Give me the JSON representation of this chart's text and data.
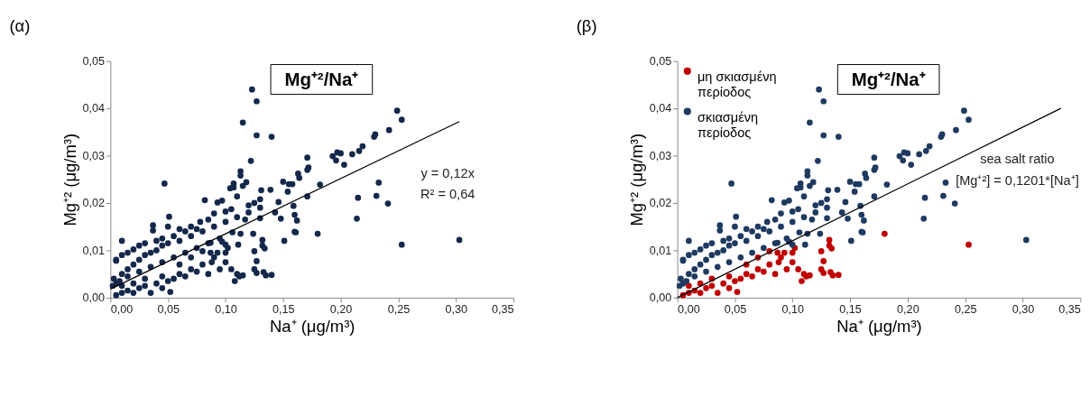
{
  "chart_data": [
    {
      "type": "scatter",
      "title": "(α)",
      "subtitle": "Mg⁺²/Na⁺",
      "xlabel": "Na⁺ (μg/m³)",
      "ylabel": "Mg⁺² (μg/m³)",
      "marker": "circle",
      "legend": false,
      "grid": false,
      "xlim": [
        0,
        0.35
      ],
      "ylim": [
        0,
        0.05
      ],
      "xticks": [
        {
          "value": 0,
          "label": "0,00"
        },
        {
          "value": 0.05,
          "label": "0,05"
        },
        {
          "value": 0.1,
          "label": "0,10"
        },
        {
          "value": 0.15,
          "label": "0,15"
        },
        {
          "value": 0.2,
          "label": "0,20"
        },
        {
          "value": 0.25,
          "label": "0,25"
        },
        {
          "value": 0.3,
          "label": "0,30"
        },
        {
          "value": 0.35,
          "label": "0,35"
        }
      ],
      "yticks": [
        {
          "value": 0,
          "label": "0,00"
        },
        {
          "value": 0.01,
          "label": "0,01"
        },
        {
          "value": 0.02,
          "label": "0,02"
        },
        {
          "value": 0.03,
          "label": "0,03"
        },
        {
          "value": 0.04,
          "label": "0,04"
        },
        {
          "value": 0.05,
          "label": "0,05"
        }
      ],
      "annotations": [
        "y = 0,12x",
        "R² = 0,64"
      ],
      "series": [
        {
          "type": "scatter",
          "color": "#14284b",
          "x": [
            0.123,
            0.127,
            0.115,
            0.127,
            0.14,
            0.122,
            0.249,
            0.253,
            0.242,
            0.23,
            0.229,
            0.219,
            0.216,
            0.21,
            0.2,
            0.197,
            0.193,
            0.196,
            0.203,
            0.171,
            0.172,
            0.171,
            0.163,
            0.164,
            0.15,
            0.155,
            0.158,
            0.154,
            0.182,
            0.171,
            0.233,
            0.231,
            0.241,
            0.215,
            0.214,
            0.303,
            0.151,
            0.16,
            0.161,
            0.159,
            0.16,
            0.162,
            0.146,
            0.143,
            0.148,
            0.139,
            0.131,
            0.13,
            0.125,
            0.12,
            0.113,
            0.113,
            0.118,
            0.115,
            0.107,
            0.107,
            0.104,
            0.11,
            0.105,
            0.1,
            0.093,
            0.097,
            0.082,
            0.09,
            0.047,
            0.051,
            0.037,
            0.037,
            0.01,
            0.05,
            0.06,
            0.07,
            0.078,
            0.085,
            0.005,
            0.005,
            0.01,
            0.015,
            0.02,
            0.025,
            0.03,
            0.04,
            0.045,
            0.055,
            0.065,
            0.075,
            0.003,
            0.005,
            0.01,
            0.015,
            0.02,
            0.025,
            0.03,
            0.035,
            0.04,
            0.045,
            0.05,
            0.06,
            0.07,
            0.08,
            0.09,
            0.1,
            0.11,
            0.12,
            0.13,
            0.002,
            0.008,
            0.015,
            0.025,
            0.035,
            0.045,
            0.055,
            0.065,
            0.075,
            0.085,
            0.095,
            0.106,
            0.117,
            0.124,
            0.13,
            0.113,
            0.111,
            0.1,
            0.097,
            0.087,
            0.005,
            0.01,
            0.015,
            0.02,
            0.025,
            0.03,
            0.035,
            0.04,
            0.045,
            0.05,
            0.052,
            0.055,
            0.06,
            0.065,
            0.07,
            0.075,
            0.08,
            0.085,
            0.09,
            0.095,
            0.1,
            0.1,
            0.105,
            0.108,
            0.11,
            0.115,
            0.112,
            0.088,
            0.093,
            0.102,
            0.125,
            0.127,
            0.125,
            0.127,
            0.132,
            0.132,
            0.134,
            0.133,
            0.135,
            0.14,
            0.087,
            0.08,
            0.07,
            0.06,
            0.045,
            0.03,
            0.02,
            0.01,
            0.253,
            0.18
          ],
          "values": [
            0.044,
            0.0415,
            0.037,
            0.0343,
            0.034,
            0.0289,
            0.0395,
            0.0376,
            0.0354,
            0.0345,
            0.034,
            0.032,
            0.031,
            0.0303,
            0.0305,
            0.0307,
            0.0299,
            0.029,
            0.0281,
            0.0296,
            0.0275,
            0.027,
            0.0262,
            0.0253,
            0.0245,
            0.024,
            0.024,
            0.0224,
            0.0239,
            0.0214,
            0.0243,
            0.0215,
            0.0199,
            0.0211,
            0.0167,
            0.0122,
            0.012,
            0.0139,
            0.0138,
            0.0194,
            0.0175,
            0.0163,
            0.0202,
            0.018,
            0.0167,
            0.0228,
            0.0227,
            0.0208,
            0.02,
            0.0195,
            0.0267,
            0.0258,
            0.0244,
            0.0236,
            0.0241,
            0.0233,
            0.0231,
            0.0214,
            0.0187,
            0.0182,
            0.0201,
            0.0205,
            0.0206,
            0.0178,
            0.0241,
            0.0171,
            0.0153,
            0.0142,
            0.012,
            0.015,
            0.0145,
            0.015,
            0.016,
            0.0165,
            0.008,
            0.0078,
            0.009,
            0.0095,
            0.0102,
            0.011,
            0.0115,
            0.012,
            0.0125,
            0.013,
            0.014,
            0.0145,
            0.004,
            0.003,
            0.005,
            0.006,
            0.007,
            0.008,
            0.009,
            0.0095,
            0.01,
            0.011,
            0.0115,
            0.012,
            0.013,
            0.014,
            0.015,
            0.016,
            0.017,
            0.018,
            0.019,
            0.0025,
            0.0035,
            0.0045,
            0.0055,
            0.0065,
            0.0075,
            0.0085,
            0.0095,
            0.0105,
            0.0115,
            0.0125,
            0.0138,
            0.0165,
            0.0135,
            0.0168,
            0.0135,
            0.0112,
            0.0112,
            0.0118,
            0.0116,
            0.0005,
            0.001,
            0.0015,
            0.001,
            0.002,
            0.0025,
            0.001,
            0.003,
            0.002,
            0.0035,
            0.0012,
            0.004,
            0.005,
            0.0045,
            0.006,
            0.0055,
            0.007,
            0.005,
            0.0085,
            0.006,
            0.0095,
            0.0075,
            0.006,
            0.0035,
            0.005,
            0.0047,
            0.0045,
            0.0075,
            0.0095,
            0.0105,
            0.0098,
            0.0077,
            0.006,
            0.0052,
            0.0122,
            0.011,
            0.0104,
            0.0054,
            0.0047,
            0.0048,
            0.0095,
            0.0098,
            0.0085,
            0.007,
            0.0045,
            0.004,
            0.003,
            0.0025,
            0.0112,
            0.0135
          ]
        },
        {
          "type": "line",
          "color": "#000000",
          "marker": "none",
          "line_style": "solid",
          "x": [
            0,
            0.303
          ],
          "values": [
            0.0018,
            0.0372
          ]
        }
      ]
    },
    {
      "type": "scatter",
      "title": "(β)",
      "subtitle": "Mg⁺²/Na⁺",
      "xlabel": "Na⁺ (μg/m³)",
      "ylabel": "Mg⁺² (μg/m³)",
      "marker": "circle",
      "legend": "top left",
      "grid": false,
      "xlim": [
        0,
        0.35
      ],
      "ylim": [
        0,
        0.05
      ],
      "xticks": [
        {
          "value": 0,
          "label": "0,00"
        },
        {
          "value": 0.05,
          "label": "0,05"
        },
        {
          "value": 0.1,
          "label": "0,10"
        },
        {
          "value": 0.15,
          "label": "0,15"
        },
        {
          "value": 0.2,
          "label": "0,20"
        },
        {
          "value": 0.25,
          "label": "0,25"
        },
        {
          "value": 0.3,
          "label": "0,30"
        },
        {
          "value": 0.35,
          "label": "0,35"
        }
      ],
      "yticks": [
        {
          "value": 0,
          "label": "0,00"
        },
        {
          "value": 0.01,
          "label": "0,01"
        },
        {
          "value": 0.02,
          "label": "0,02"
        },
        {
          "value": 0.03,
          "label": "0,03"
        },
        {
          "value": 0.04,
          "label": "0,04"
        },
        {
          "value": 0.05,
          "label": "0,05"
        }
      ],
      "annotations": [
        "sea salt ratio",
        "[Mg⁺²] = 0,1201*[Na⁺]"
      ],
      "series": [
        {
          "type": "scatter",
          "name": "μη σκιασμένη περίοδος",
          "color": "#c00000",
          "x": [
            0.005,
            0.01,
            0.015,
            0.02,
            0.025,
            0.03,
            0.035,
            0.04,
            0.045,
            0.05,
            0.052,
            0.055,
            0.06,
            0.065,
            0.07,
            0.075,
            0.08,
            0.085,
            0.09,
            0.095,
            0.1,
            0.1,
            0.105,
            0.108,
            0.11,
            0.115,
            0.112,
            0.088,
            0.093,
            0.102,
            0.125,
            0.127,
            0.125,
            0.127,
            0.132,
            0.132,
            0.134,
            0.133,
            0.135,
            0.14,
            0.087,
            0.08,
            0.07,
            0.06,
            0.045,
            0.03,
            0.02,
            0.01,
            0.253,
            0.18
          ],
          "values": [
            0.0005,
            0.001,
            0.0015,
            0.001,
            0.002,
            0.0025,
            0.001,
            0.003,
            0.002,
            0.0035,
            0.0012,
            0.004,
            0.005,
            0.0045,
            0.006,
            0.0055,
            0.007,
            0.005,
            0.0085,
            0.006,
            0.0095,
            0.0075,
            0.006,
            0.0035,
            0.005,
            0.0047,
            0.0045,
            0.0075,
            0.0095,
            0.0105,
            0.0098,
            0.0077,
            0.006,
            0.0052,
            0.0122,
            0.011,
            0.0104,
            0.0054,
            0.0047,
            0.0048,
            0.0095,
            0.0098,
            0.0085,
            0.007,
            0.0045,
            0.004,
            0.003,
            0.0025,
            0.0112,
            0.0135
          ]
        },
        {
          "type": "scatter",
          "name": "σκιασμένη περίοδος",
          "color": "#1f3a60",
          "x": [
            0.123,
            0.127,
            0.115,
            0.127,
            0.14,
            0.122,
            0.249,
            0.253,
            0.242,
            0.23,
            0.229,
            0.219,
            0.216,
            0.21,
            0.2,
            0.197,
            0.193,
            0.196,
            0.203,
            0.171,
            0.172,
            0.171,
            0.163,
            0.164,
            0.15,
            0.155,
            0.158,
            0.154,
            0.182,
            0.171,
            0.233,
            0.231,
            0.241,
            0.215,
            0.214,
            0.303,
            0.151,
            0.16,
            0.161,
            0.159,
            0.16,
            0.162,
            0.146,
            0.143,
            0.148,
            0.139,
            0.131,
            0.13,
            0.125,
            0.12,
            0.113,
            0.113,
            0.118,
            0.115,
            0.107,
            0.107,
            0.104,
            0.11,
            0.105,
            0.1,
            0.093,
            0.097,
            0.082,
            0.09,
            0.047,
            0.051,
            0.037,
            0.037,
            0.01,
            0.05,
            0.06,
            0.07,
            0.078,
            0.085,
            0.005,
            0.005,
            0.01,
            0.015,
            0.02,
            0.025,
            0.03,
            0.04,
            0.045,
            0.055,
            0.065,
            0.075,
            0.003,
            0.005,
            0.01,
            0.015,
            0.02,
            0.025,
            0.03,
            0.035,
            0.04,
            0.045,
            0.05,
            0.06,
            0.07,
            0.08,
            0.09,
            0.1,
            0.11,
            0.12,
            0.13,
            0.002,
            0.008,
            0.015,
            0.025,
            0.035,
            0.045,
            0.055,
            0.065,
            0.075,
            0.085,
            0.095,
            0.106,
            0.117,
            0.124,
            0.13,
            0.113,
            0.111,
            0.1,
            0.097,
            0.087
          ],
          "values": [
            0.044,
            0.0415,
            0.037,
            0.0343,
            0.034,
            0.0289,
            0.0395,
            0.0376,
            0.0354,
            0.0345,
            0.034,
            0.032,
            0.031,
            0.0303,
            0.0305,
            0.0307,
            0.0299,
            0.029,
            0.0281,
            0.0296,
            0.0275,
            0.027,
            0.0262,
            0.0253,
            0.0245,
            0.024,
            0.024,
            0.0224,
            0.0239,
            0.0214,
            0.0243,
            0.0215,
            0.0199,
            0.0211,
            0.0167,
            0.0122,
            0.012,
            0.0139,
            0.0138,
            0.0194,
            0.0175,
            0.0163,
            0.0202,
            0.018,
            0.0167,
            0.0228,
            0.0227,
            0.0208,
            0.02,
            0.0195,
            0.0267,
            0.0258,
            0.0244,
            0.0236,
            0.0241,
            0.0233,
            0.0231,
            0.0214,
            0.0187,
            0.0182,
            0.0201,
            0.0205,
            0.0206,
            0.0178,
            0.0241,
            0.0171,
            0.0153,
            0.0142,
            0.012,
            0.015,
            0.0145,
            0.015,
            0.016,
            0.0165,
            0.008,
            0.0078,
            0.009,
            0.0095,
            0.0102,
            0.011,
            0.0115,
            0.012,
            0.0125,
            0.013,
            0.014,
            0.0145,
            0.004,
            0.003,
            0.005,
            0.006,
            0.007,
            0.008,
            0.009,
            0.0095,
            0.01,
            0.011,
            0.0115,
            0.012,
            0.013,
            0.014,
            0.015,
            0.016,
            0.017,
            0.018,
            0.019,
            0.0025,
            0.0035,
            0.0045,
            0.0055,
            0.0065,
            0.0075,
            0.0085,
            0.0095,
            0.0105,
            0.0115,
            0.0125,
            0.0138,
            0.0165,
            0.0135,
            0.0168,
            0.0135,
            0.0112,
            0.0112,
            0.0118,
            0.0116
          ]
        },
        {
          "type": "line",
          "color": "#000000",
          "marker": "none",
          "line_style": "solid",
          "x": [
            0,
            0.333
          ],
          "values": [
            0,
            0.04
          ]
        }
      ]
    }
  ]
}
